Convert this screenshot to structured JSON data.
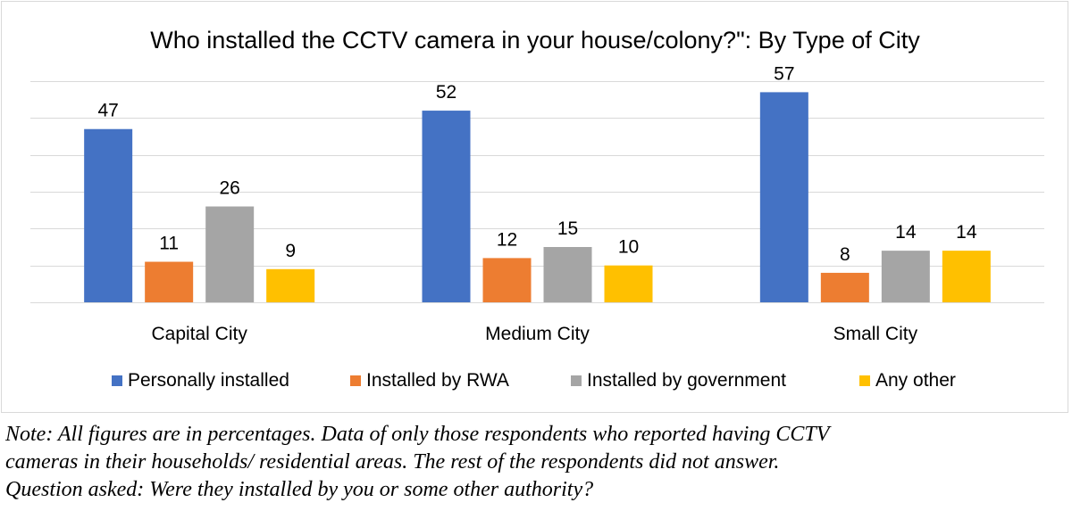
{
  "chart_data": {
    "type": "bar",
    "title": "Who installed the CCTV camera in your house/colony?\": By Type of City",
    "categories": [
      "Capital City",
      "Medium City",
      "Small City"
    ],
    "series": [
      {
        "name": "Personally installed",
        "color": "#4472c4",
        "values": [
          47,
          52,
          57
        ]
      },
      {
        "name": "Installed by RWA",
        "color": "#ed7d31",
        "values": [
          11,
          12,
          8
        ]
      },
      {
        "name": "Installed by government",
        "color": "#a5a5a5",
        "values": [
          26,
          15,
          14
        ]
      },
      {
        "name": "Any other",
        "color": "#ffc000",
        "values": [
          9,
          10,
          14
        ]
      }
    ],
    "ylim": [
      0,
      60
    ],
    "grid": true,
    "legend_position": "bottom"
  },
  "note": {
    "lines": [
      "Note: All figures are in percentages. Data of only those respondents who reported having CCTV",
      "cameras in their households/ residential areas. The rest of the respondents did not answer.",
      "Question asked: Were they installed by you or some other authority?"
    ]
  }
}
